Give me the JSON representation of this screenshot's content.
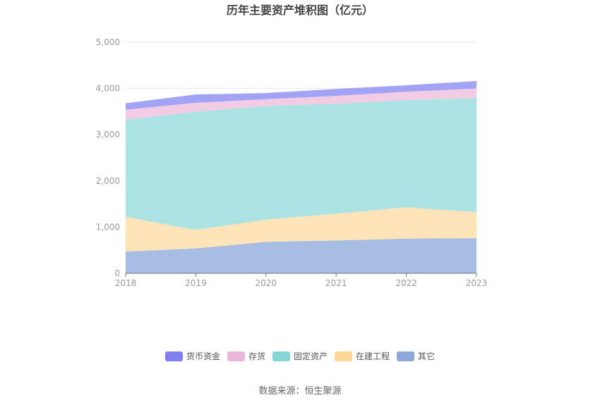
{
  "chart_data": {
    "type": "area",
    "stacked": true,
    "title": "历年主要资产堆积图（亿元）",
    "x": [
      "2018",
      "2019",
      "2020",
      "2021",
      "2022",
      "2023"
    ],
    "ylim": [
      0,
      5000
    ],
    "yticks": [
      "0",
      "1,000",
      "2,000",
      "3,000",
      "4,000",
      "5,000"
    ],
    "grid": true,
    "legend_position": "bottom",
    "series": [
      {
        "name": "其它",
        "color": "#a8bde3",
        "legend_color": "#8fa8dc",
        "values": [
          470,
          540,
          680,
          710,
          750,
          760
        ]
      },
      {
        "name": "在建工程",
        "color": "#fde4b8",
        "legend_color": "#ffd898",
        "values": [
          750,
          400,
          480,
          580,
          680,
          560
        ]
      },
      {
        "name": "固定资产",
        "color": "#abe3e3",
        "legend_color": "#87d6d6",
        "values": [
          2100,
          2560,
          2460,
          2380,
          2320,
          2470
        ]
      },
      {
        "name": "存货",
        "color": "#f1cce4",
        "legend_color": "#e9b8d9",
        "values": [
          220,
          190,
          150,
          170,
          180,
          210
        ]
      },
      {
        "name": "货币资金",
        "color": "#a3a3f5",
        "legend_color": "#7f7ff2",
        "values": [
          140,
          180,
          130,
          150,
          140,
          160
        ]
      }
    ],
    "legend_order": [
      "货币资金",
      "存货",
      "固定资产",
      "在建工程",
      "其它"
    ]
  },
  "footer": {
    "source_text": "数据来源：恒生聚源"
  }
}
